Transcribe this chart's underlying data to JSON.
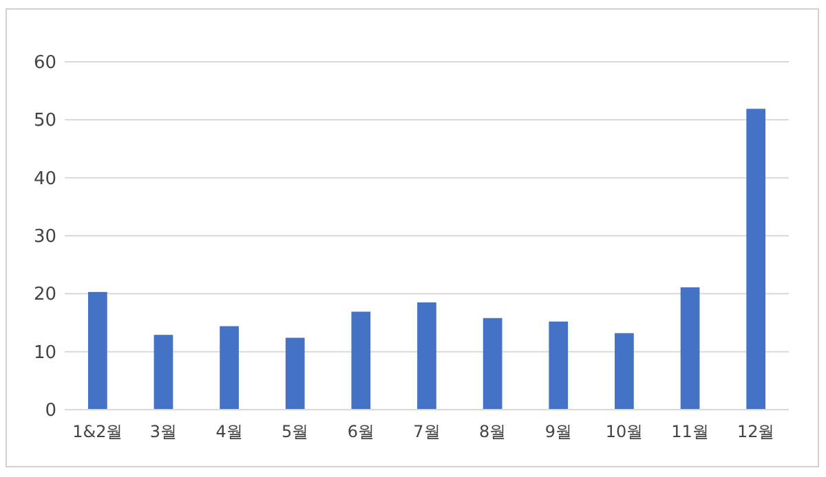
{
  "chart_data": {
    "type": "bar",
    "categories": [
      "1&2월",
      "3월",
      "4월",
      "5월",
      "6월",
      "7월",
      "8월",
      "9월",
      "10월",
      "11월",
      "12월"
    ],
    "values": [
      20.3,
      12.9,
      14.4,
      12.4,
      16.9,
      18.5,
      15.8,
      15.2,
      13.2,
      21.1,
      51.9
    ],
    "color": "#4472c4",
    "ylim": [
      0,
      60
    ],
    "yticks": [
      0,
      10,
      20,
      30,
      40,
      50,
      60
    ],
    "grid": "y"
  }
}
